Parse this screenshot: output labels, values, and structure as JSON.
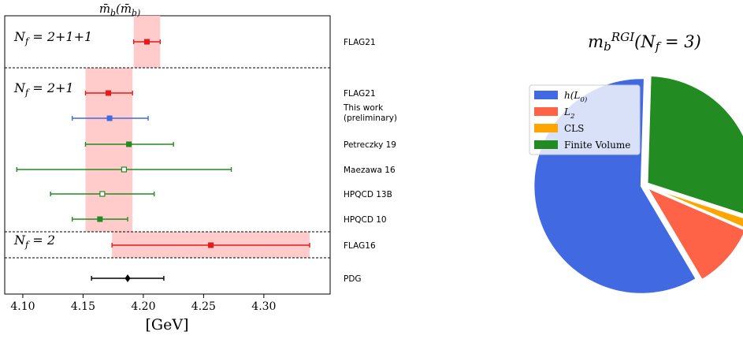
{
  "chart_data": [
    {
      "type": "scatter",
      "subtype": "forest-plot",
      "title": "m̄_b(m̄_b)",
      "xlabel": "[GeV]",
      "xlim": [
        4.085,
        4.355
      ],
      "xticks": [
        4.1,
        4.15,
        4.2,
        4.25,
        4.3
      ],
      "xtick_labels": [
        "4.10",
        "4.15",
        "4.20",
        "4.25",
        "4.30"
      ],
      "groups": [
        {
          "label": "N_f = 2+1+1",
          "band": [
            4.192,
            4.214
          ]
        },
        {
          "label": "N_f = 2+1",
          "band": [
            4.152,
            4.191
          ]
        },
        {
          "label": "N_f = 2",
          "band": [
            4.174,
            4.338
          ]
        }
      ],
      "points": [
        {
          "label": "FLAG21",
          "group": 0,
          "value": 4.203,
          "err_low": 4.192,
          "err_high": 4.214,
          "color": "#e41a1c",
          "marker": "square"
        },
        {
          "label": "FLAG21",
          "group": 1,
          "value": 4.171,
          "err_low": 4.152,
          "err_high": 4.191,
          "color": "#e41a1c",
          "marker": "square"
        },
        {
          "label": "This work",
          "label2": "(preliminary)",
          "group": 1,
          "value": 4.172,
          "err_low": 4.141,
          "err_high": 4.204,
          "color": "#4169e1",
          "marker": "square"
        },
        {
          "label": "Petreczky 19",
          "group": 1,
          "value": 4.188,
          "err_low": 4.152,
          "err_high": 4.225,
          "color": "#228b22",
          "marker": "square"
        },
        {
          "label": "Maezawa 16",
          "group": 1,
          "value": 4.184,
          "err_low": 4.095,
          "err_high": 4.273,
          "color": "#228b22",
          "marker": "open-square"
        },
        {
          "label": "HPQCD 13B",
          "group": 1,
          "value": 4.166,
          "err_low": 4.123,
          "err_high": 4.209,
          "color": "#228b22",
          "marker": "open-square"
        },
        {
          "label": "HPQCD 10",
          "group": 1,
          "value": 4.164,
          "err_low": 4.141,
          "err_high": 4.187,
          "color": "#228b22",
          "marker": "square"
        },
        {
          "label": "FLAG16",
          "group": 2,
          "value": 4.256,
          "err_low": 4.174,
          "err_high": 4.338,
          "color": "#e41a1c",
          "marker": "square"
        },
        {
          "label": "PDG",
          "group": 3,
          "value": 4.187,
          "err_low": 4.157,
          "err_high": 4.217,
          "color": "#000000",
          "marker": "diamond"
        }
      ],
      "grid": false
    },
    {
      "type": "pie",
      "title": "m_b^RGI(N_f = 3)",
      "legend_placement": "top-left",
      "slices": [
        {
          "label": "h(L_0)",
          "value": 59,
          "color": "#4169e1"
        },
        {
          "label": "L_2",
          "value": 10,
          "color": "#ff6347"
        },
        {
          "label": "CLS",
          "value": 1.5,
          "color": "#ffa500"
        },
        {
          "label": "Finite Volume",
          "value": 29.5,
          "color": "#228b22"
        }
      ]
    }
  ]
}
